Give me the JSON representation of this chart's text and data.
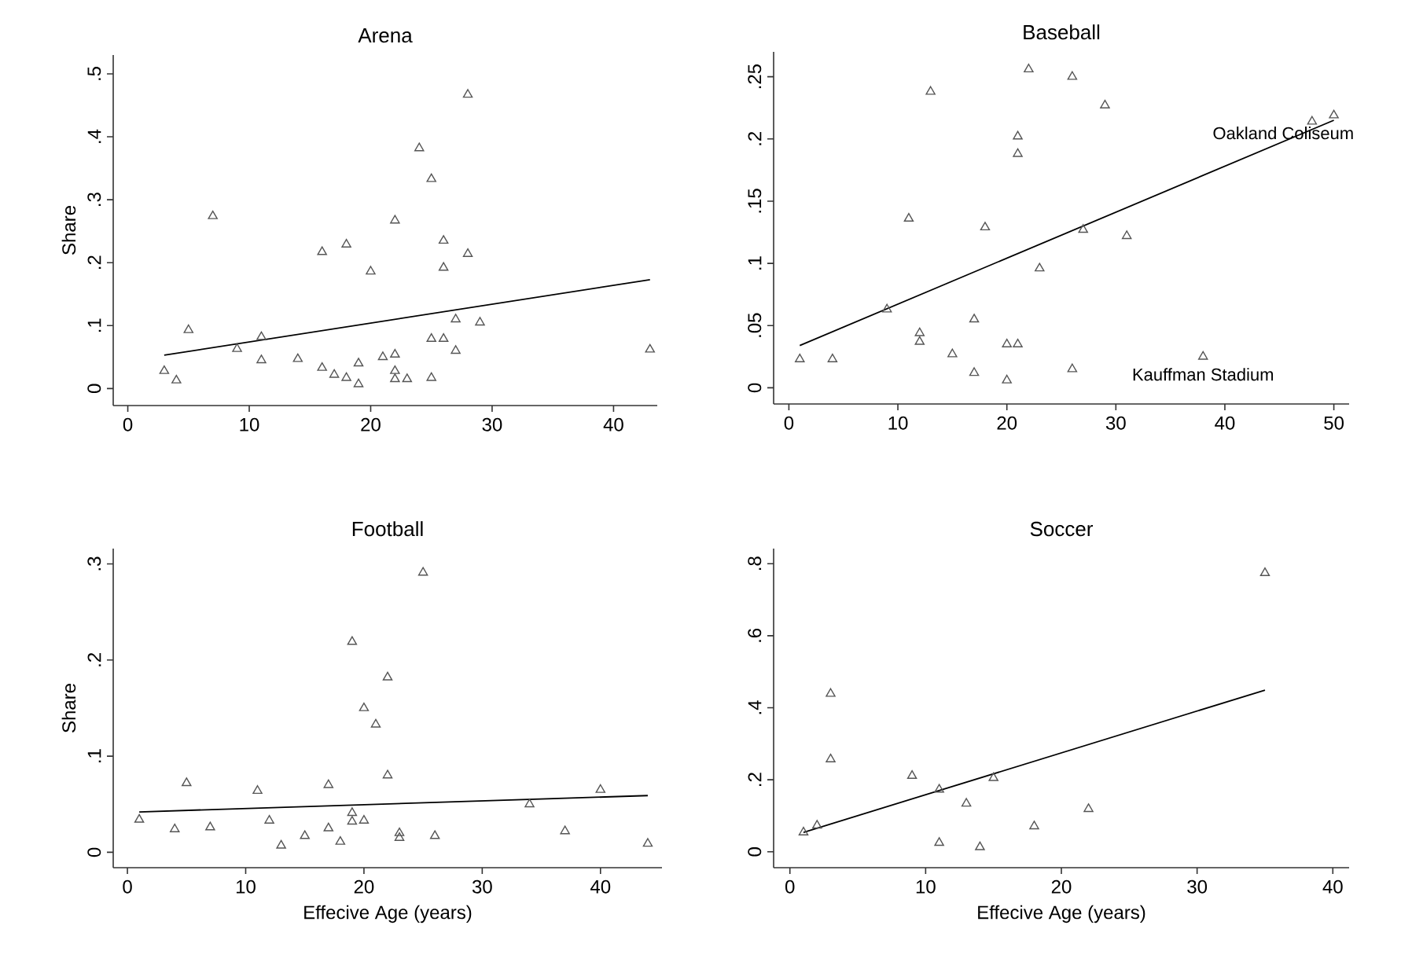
{
  "chart_data": [
    {
      "type": "scatter",
      "title": "Arena",
      "ylabel": "Share",
      "xlim": [
        -1.2,
        43.6
      ],
      "ylim": [
        -0.027,
        0.53
      ],
      "xticks": [
        0,
        10,
        20,
        30,
        40
      ],
      "yticks": [
        0,
        {
          "value": 0.1,
          "label": ".1"
        },
        {
          "value": 0.2,
          "label": ".2"
        },
        {
          "value": 0.3,
          "label": ".3"
        },
        {
          "value": 0.4,
          "label": ".4"
        },
        {
          "value": 0.5,
          "label": ".5"
        }
      ],
      "series": [
        {
          "type": "scatter",
          "marker": "triangle",
          "color": "#555555",
          "x": [
            3,
            4,
            5,
            7,
            9,
            11,
            11,
            14,
            16,
            16,
            17,
            18,
            18,
            19,
            19,
            20,
            21,
            22,
            22,
            22,
            22,
            23,
            24,
            25,
            25,
            25,
            26,
            26,
            26,
            27,
            27,
            28,
            29,
            28,
            43
          ],
          "values": [
            0.028,
            0.013,
            0.093,
            0.274,
            0.063,
            0.082,
            0.045,
            0.047,
            0.217,
            0.033,
            0.022,
            0.229,
            0.017,
            0.04,
            0.007,
            0.186,
            0.05,
            0.267,
            0.054,
            0.028,
            0.015,
            0.015,
            0.382,
            0.333,
            0.079,
            0.017,
            0.235,
            0.192,
            0.079,
            0.11,
            0.06,
            0.214,
            0.105,
            0.467,
            0.062
          ]
        },
        {
          "type": "line",
          "marker": "none",
          "color": "#000000",
          "x": [
            3,
            43
          ],
          "values": [
            0.053,
            0.173
          ]
        }
      ]
    },
    {
      "type": "scatter",
      "title": "Baseball",
      "xlim": [
        -1.4,
        51.4
      ],
      "ylim": [
        -0.013,
        0.27
      ],
      "xticks": [
        0,
        10,
        20,
        30,
        40,
        50
      ],
      "yticks": [
        0,
        {
          "value": 0.05,
          "label": ".05"
        },
        {
          "value": 0.1,
          "label": ".1"
        },
        {
          "value": 0.15,
          "label": ".15"
        },
        {
          "value": 0.2,
          "label": ".2"
        },
        {
          "value": 0.25,
          "label": ".25"
        }
      ],
      "annotations": [
        {
          "text": "Oakland Coliseum",
          "x": 50,
          "y": 0.219
        },
        {
          "text": "Kauffman Stadium",
          "x": 38,
          "y": 0.025
        }
      ],
      "series": [
        {
          "type": "scatter",
          "marker": "triangle",
          "color": "#555555",
          "x": [
            1,
            4,
            9,
            11,
            13,
            12,
            12,
            15,
            17,
            17,
            18,
            20,
            20,
            21,
            21,
            21,
            22,
            23,
            26,
            26,
            27,
            29,
            31,
            38,
            48,
            50
          ],
          "values": [
            0.023,
            0.023,
            0.063,
            0.136,
            0.238,
            0.044,
            0.037,
            0.027,
            0.055,
            0.012,
            0.129,
            0.035,
            0.006,
            0.202,
            0.188,
            0.035,
            0.256,
            0.096,
            0.25,
            0.015,
            0.127,
            0.227,
            0.122,
            0.025,
            0.214,
            0.219
          ]
        },
        {
          "type": "line",
          "marker": "none",
          "color": "#000000",
          "x": [
            1,
            50
          ],
          "values": [
            0.034,
            0.215
          ]
        }
      ]
    },
    {
      "type": "scatter",
      "title": "Football",
      "xlabel": "Effecive Age (years)",
      "ylabel": "Share",
      "xlim": [
        -1.2,
        45.2
      ],
      "ylim": [
        -0.016,
        0.316
      ],
      "xticks": [
        0,
        10,
        20,
        30,
        40
      ],
      "yticks": [
        0,
        {
          "value": 0.1,
          "label": ".1"
        },
        {
          "value": 0.2,
          "label": ".2"
        },
        {
          "value": 0.3,
          "label": ".3"
        }
      ],
      "series": [
        {
          "type": "scatter",
          "marker": "triangle",
          "color": "#555555",
          "x": [
            1,
            4,
            5,
            7,
            11,
            12,
            13,
            15,
            17,
            17,
            18,
            19,
            19,
            19,
            20,
            20,
            21,
            22,
            22,
            23,
            23,
            25,
            26,
            34,
            37,
            40,
            44
          ],
          "values": [
            0.034,
            0.024,
            0.072,
            0.026,
            0.064,
            0.033,
            0.007,
            0.017,
            0.07,
            0.025,
            0.011,
            0.219,
            0.041,
            0.032,
            0.15,
            0.033,
            0.133,
            0.182,
            0.08,
            0.02,
            0.015,
            0.291,
            0.017,
            0.05,
            0.022,
            0.065,
            0.009
          ]
        },
        {
          "type": "line",
          "marker": "none",
          "color": "#000000",
          "x": [
            1,
            44
          ],
          "values": [
            0.042,
            0.059
          ]
        }
      ]
    },
    {
      "type": "scatter",
      "title": "Soccer",
      "xlabel": "Effecive Age (years)",
      "xlim": [
        -1.2,
        41.2
      ],
      "ylim": [
        -0.044,
        0.842
      ],
      "xticks": [
        0,
        10,
        20,
        30,
        40
      ],
      "yticks": [
        0,
        {
          "value": 0.2,
          "label": ".2"
        },
        {
          "value": 0.4,
          "label": ".4"
        },
        {
          "value": 0.6,
          "label": ".6"
        },
        {
          "value": 0.8,
          "label": ".8"
        }
      ],
      "series": [
        {
          "type": "scatter",
          "marker": "triangle",
          "color": "#555555",
          "x": [
            1,
            2,
            3,
            3,
            9,
            11,
            11,
            13,
            14,
            15,
            18,
            22,
            35
          ],
          "values": [
            0.054,
            0.073,
            0.439,
            0.257,
            0.211,
            0.173,
            0.025,
            0.134,
            0.013,
            0.205,
            0.071,
            0.119,
            0.774
          ]
        },
        {
          "type": "line",
          "marker": "none",
          "color": "#000000",
          "x": [
            1,
            35
          ],
          "values": [
            0.054,
            0.449
          ]
        }
      ]
    }
  ]
}
